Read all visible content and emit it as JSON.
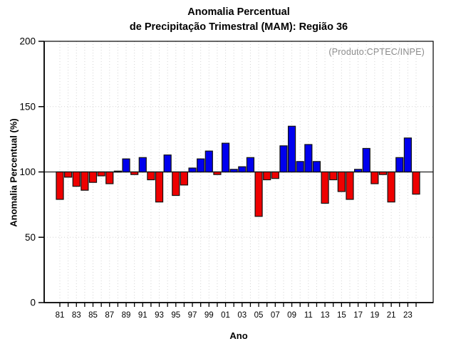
{
  "title": {
    "line1": "Anomalia Percentual",
    "line2": "de Precipitação Trimestral (MAM): Região 36"
  },
  "annotation": "(Produto:CPTEC/INPE)",
  "axes": {
    "y_label": "Anomalia Percentual (%)",
    "x_label": "Ano"
  },
  "colors": {
    "above_baseline": "#0000ee",
    "below_baseline": "#ee0000",
    "bar_outline": "#111111",
    "grid_dotted": "#d4d4d4",
    "baseline_line": "#3f3f3f",
    "frame": "#000000",
    "annotation_text": "#8a8a8a"
  },
  "chart_data": {
    "type": "bar",
    "title": "Anomalia Percentual de Precipitação Trimestral (MAM): Região 36",
    "xlabel": "Ano",
    "ylabel": "Anomalia Percentual (%)",
    "ylim": [
      0,
      200
    ],
    "y_ticks": [
      0,
      50,
      100,
      150,
      200
    ],
    "y_gridlines_dotted": [
      50,
      150
    ],
    "baseline": 100,
    "grid": "dotted",
    "legend_position": "none",
    "start_year": 1981,
    "x_tick_labels": [
      "81",
      "83",
      "85",
      "87",
      "89",
      "91",
      "93",
      "95",
      "97",
      "99",
      "01",
      "03",
      "05",
      "07",
      "09",
      "11",
      "13",
      "15",
      "17",
      "19",
      "21",
      "23"
    ],
    "values": [
      79,
      96,
      89,
      86,
      92,
      97,
      91,
      100,
      110,
      98,
      111,
      94,
      77,
      113,
      82,
      90,
      103,
      110,
      116,
      98,
      122,
      102,
      104,
      111,
      66,
      94,
      95,
      120,
      135,
      108,
      121,
      108,
      76,
      94,
      85,
      79,
      102,
      118,
      91,
      98,
      77,
      111,
      126,
      83
    ]
  }
}
